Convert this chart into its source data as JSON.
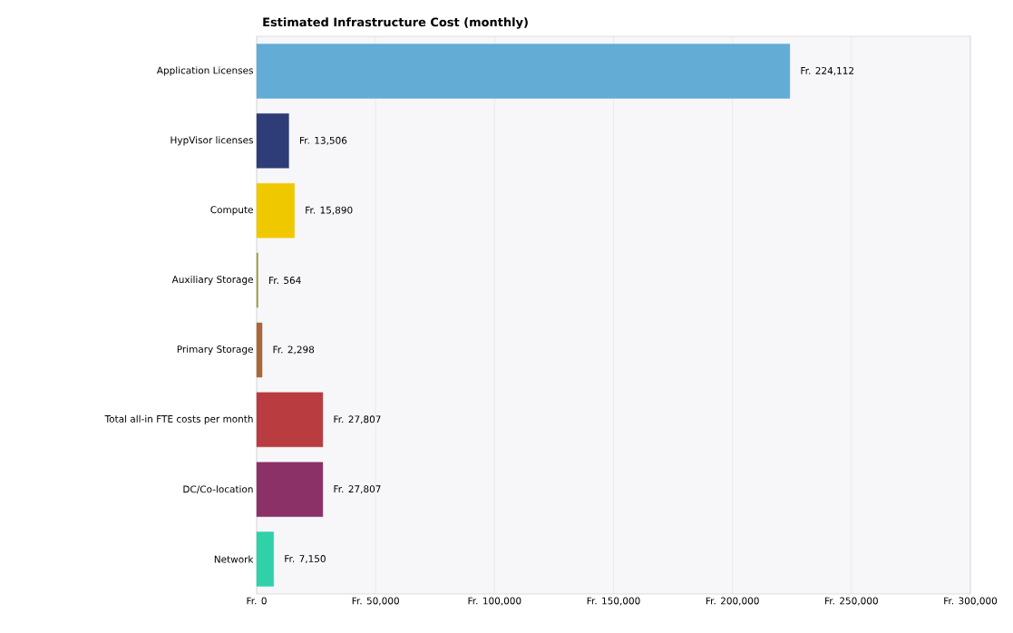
{
  "chart_data": {
    "type": "bar",
    "orientation": "horizontal",
    "title": "Estimated Infrastructure Cost (monthly)",
    "categories": [
      "Application Licenses",
      "HypVisor licenses",
      "Compute",
      "Auxiliary Storage",
      "Primary Storage",
      "Total all-in FTE costs per month",
      "DC/Co-location",
      "Network"
    ],
    "values": [
      224112,
      13506,
      15890,
      564,
      2298,
      27807,
      27807,
      7150
    ],
    "value_labels": [
      "Fr. 224,112",
      "Fr. 13,506",
      "Fr. 15,890",
      "Fr. 564",
      "Fr. 2,298",
      "Fr. 27,807",
      "Fr. 27,807",
      "Fr. 7,150"
    ],
    "colors": [
      "#62acd6",
      "#2e3d78",
      "#f0c800",
      "#9a9a3a",
      "#a8683a",
      "#b83c40",
      "#8c3068",
      "#30d0a8"
    ],
    "xlim": [
      0,
      300000
    ],
    "xticks": [
      {
        "value": 0,
        "label": "Fr. 0"
      },
      {
        "value": 50000,
        "label": "Fr. 50,000"
      },
      {
        "value": 100000,
        "label": "Fr. 100,000"
      },
      {
        "value": 150000,
        "label": "Fr. 150,000"
      },
      {
        "value": 200000,
        "label": "Fr. 200,000"
      },
      {
        "value": 250000,
        "label": "Fr. 250,000"
      },
      {
        "value": 300000,
        "label": "Fr. 300,000"
      }
    ],
    "grid": "x"
  }
}
